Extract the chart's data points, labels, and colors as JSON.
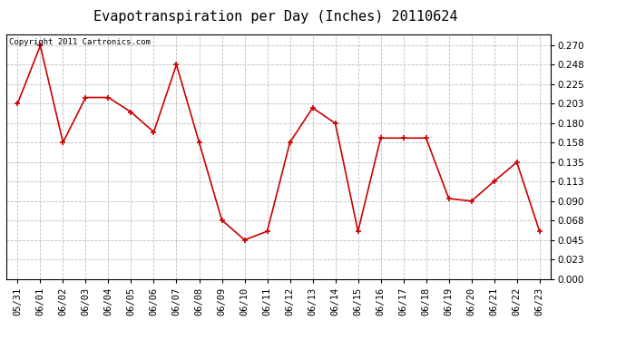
{
  "title": "Evapotranspiration per Day (Inches) 20110624",
  "copyright_text": "Copyright 2011 Cartronics.com",
  "dates": [
    "05/31",
    "06/01",
    "06/02",
    "06/03",
    "06/04",
    "06/05",
    "06/06",
    "06/07",
    "06/08",
    "06/09",
    "06/10",
    "06/11",
    "06/12",
    "06/13",
    "06/14",
    "06/15",
    "06/16",
    "06/17",
    "06/18",
    "06/19",
    "06/20",
    "06/21",
    "06/22",
    "06/23"
  ],
  "values": [
    0.203,
    0.27,
    0.158,
    0.21,
    0.21,
    0.193,
    0.17,
    0.248,
    0.158,
    0.068,
    0.045,
    0.055,
    0.158,
    0.198,
    0.18,
    0.055,
    0.163,
    0.163,
    0.163,
    0.093,
    0.09,
    0.113,
    0.135,
    0.055
  ],
  "line_color": "#cc0000",
  "marker_color": "#cc0000",
  "bg_color": "#ffffff",
  "plot_bg_color": "#ffffff",
  "grid_color": "#bbbbbb",
  "y_ticks": [
    0.0,
    0.023,
    0.045,
    0.068,
    0.09,
    0.113,
    0.135,
    0.158,
    0.18,
    0.203,
    0.225,
    0.248,
    0.27
  ],
  "ylim": [
    0.0,
    0.2835
  ],
  "title_fontsize": 11,
  "tick_fontsize": 7.5,
  "copyright_fontsize": 6.5
}
